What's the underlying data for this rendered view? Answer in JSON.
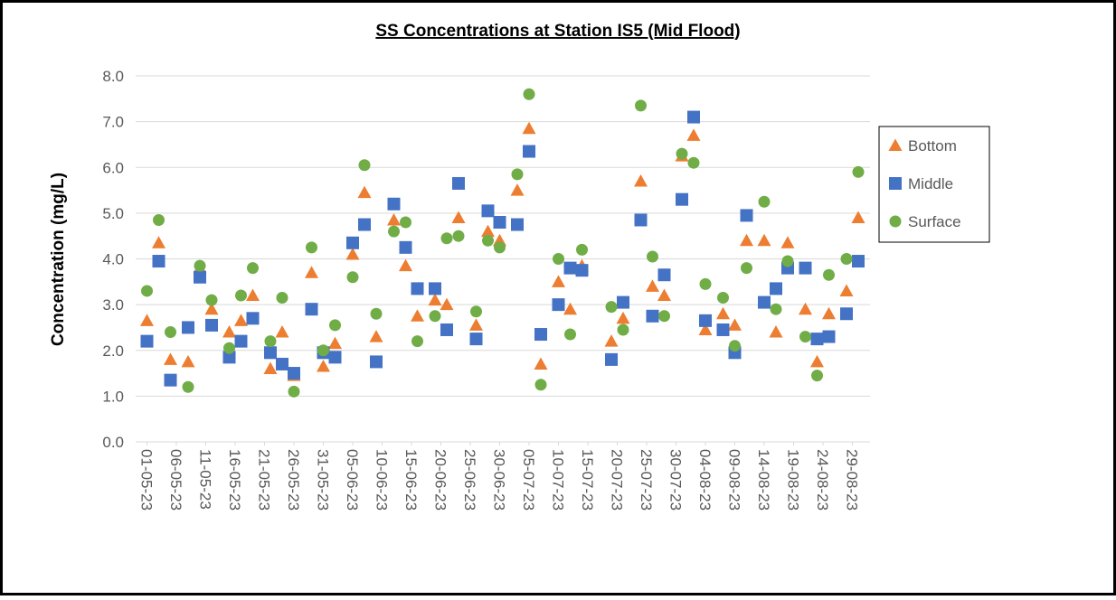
{
  "chart_data": {
    "type": "scatter",
    "title": "SS Concentrations at Station IS5 (Mid Flood)",
    "y_label": "Concentration (mg/L)",
    "x": [
      "01-05-23",
      "03-05-23",
      "05-05-23",
      "08-05-23",
      "10-05-23",
      "12-05-23",
      "15-05-23",
      "17-05-23",
      "19-05-23",
      "22-05-23",
      "24-05-23",
      "26-05-23",
      "29-05-23",
      "31-05-23",
      "02-06-23",
      "05-06-23",
      "07-06-23",
      "09-06-23",
      "12-06-23",
      "14-06-23",
      "16-06-23",
      "19-06-23",
      "21-06-23",
      "23-06-23",
      "26-06-23",
      "28-06-23",
      "30-06-23",
      "03-07-23",
      "05-07-23",
      "07-07-23",
      "10-07-23",
      "12-07-23",
      "14-07-23",
      "19-07-23",
      "21-07-23",
      "24-07-23",
      "26-07-23",
      "28-07-23",
      "31-07-23",
      "02-08-23",
      "04-08-23",
      "07-08-23",
      "09-08-23",
      "11-08-23",
      "14-08-23",
      "16-08-23",
      "18-08-23",
      "21-08-23",
      "23-08-23",
      "25-08-23",
      "28-08-23",
      "30-08-23"
    ],
    "series": [
      {
        "name": "Bottom",
        "color": "#ED7D31",
        "marker": "triangle",
        "values": [
          2.65,
          4.35,
          1.8,
          1.75,
          3.8,
          2.9,
          2.4,
          2.65,
          3.2,
          1.6,
          2.4,
          1.45,
          3.7,
          1.65,
          2.15,
          4.1,
          5.45,
          2.3,
          4.85,
          3.85,
          2.75,
          3.1,
          3.0,
          4.9,
          2.55,
          4.6,
          4.4,
          5.5,
          6.85,
          1.7,
          3.5,
          2.9,
          3.85,
          2.2,
          2.7,
          5.7,
          3.4,
          3.2,
          6.25,
          6.7,
          2.45,
          2.8,
          2.55,
          4.4,
          4.4,
          2.4,
          4.35,
          2.9,
          1.75,
          2.8,
          3.3,
          4.9
        ]
      },
      {
        "name": "Middle",
        "color": "#4472C4",
        "marker": "square",
        "values": [
          2.2,
          3.95,
          1.35,
          2.5,
          3.6,
          2.55,
          1.85,
          2.2,
          2.7,
          1.95,
          1.7,
          1.5,
          2.9,
          1.95,
          1.85,
          4.35,
          4.75,
          1.75,
          5.2,
          4.25,
          3.35,
          3.35,
          2.45,
          5.65,
          2.25,
          5.05,
          4.8,
          4.75,
          6.35,
          2.35,
          3.0,
          3.8,
          3.75,
          1.8,
          3.05,
          4.85,
          2.75,
          3.65,
          5.3,
          7.1,
          2.65,
          2.45,
          1.95,
          4.95,
          3.05,
          3.35,
          3.8,
          3.8,
          2.25,
          2.3,
          2.8,
          3.95
        ]
      },
      {
        "name": "Surface",
        "color": "#70AD47",
        "marker": "circle",
        "values": [
          3.3,
          4.85,
          2.4,
          1.2,
          3.85,
          3.1,
          2.05,
          3.2,
          3.8,
          2.2,
          3.15,
          1.1,
          4.25,
          2.0,
          2.55,
          3.6,
          6.05,
          2.8,
          4.6,
          4.8,
          2.2,
          2.75,
          4.45,
          4.5,
          2.85,
          4.4,
          4.25,
          5.85,
          7.6,
          1.25,
          4.0,
          2.35,
          4.2,
          2.95,
          2.45,
          7.35,
          4.05,
          2.75,
          6.3,
          6.1,
          3.45,
          3.15,
          2.1,
          3.8,
          5.25,
          2.9,
          3.95,
          2.3,
          1.45,
          3.65,
          4.0,
          5.9
        ]
      }
    ],
    "xlim": [
      "30-04-23",
      "01-09-23"
    ],
    "xticks": [
      "01-05-23",
      "06-05-23",
      "11-05-23",
      "16-05-23",
      "21-05-23",
      "26-05-23",
      "31-05-23",
      "05-06-23",
      "10-06-23",
      "15-06-23",
      "20-06-23",
      "25-06-23",
      "30-06-23",
      "05-07-23",
      "10-07-23",
      "15-07-23",
      "20-07-23",
      "25-07-23",
      "30-07-23",
      "04-08-23",
      "09-08-23",
      "14-08-23",
      "19-08-23",
      "24-08-23",
      "29-08-23"
    ],
    "ylim": [
      0,
      8
    ],
    "yticks": [
      {
        "value": 0,
        "label": "0.0"
      },
      {
        "value": 1,
        "label": "1.0"
      },
      {
        "value": 2,
        "label": "2.0"
      },
      {
        "value": 3,
        "label": "3.0"
      },
      {
        "value": 4,
        "label": "4.0"
      },
      {
        "value": 5,
        "label": "5.0"
      },
      {
        "value": 6,
        "label": "6.0"
      },
      {
        "value": 7,
        "label": "7.0"
      },
      {
        "value": 8,
        "label": "8.0"
      }
    ],
    "grid": true,
    "legend": "right"
  }
}
